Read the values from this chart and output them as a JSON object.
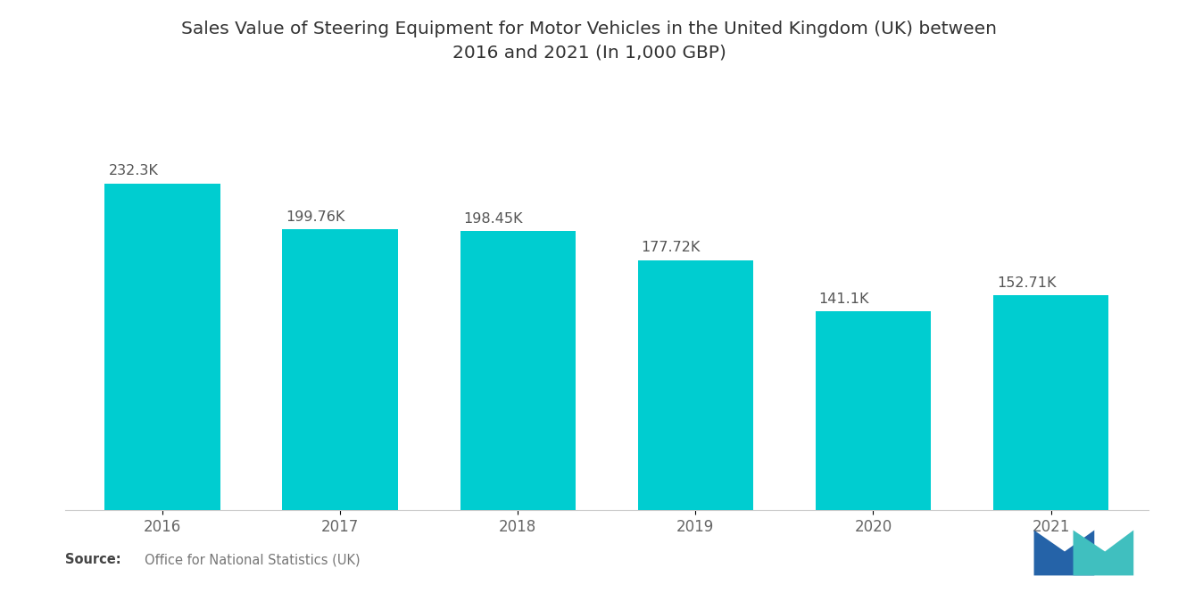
{
  "title_line1": "Sales Value of Steering Equipment for Motor Vehicles in the United Kingdom (UK) between",
  "title_line2": "2016 and 2021 (In 1,000 GBP)",
  "categories": [
    "2016",
    "2017",
    "2018",
    "2019",
    "2020",
    "2021"
  ],
  "values": [
    232300,
    199760,
    198450,
    177720,
    141100,
    152710
  ],
  "labels": [
    "232.3K",
    "199.76K",
    "198.45K",
    "177.72K",
    "141.1K",
    "152.71K"
  ],
  "bar_color": "#00CDD0",
  "background_color": "#ffffff",
  "title_fontsize": 14.5,
  "label_fontsize": 11.5,
  "tick_fontsize": 12,
  "source_text": "Office for National Statistics (UK)",
  "source_label": "Source:",
  "ylim": [
    0,
    270000
  ],
  "logo_left_color": "#2563a8",
  "logo_right_color": "#40bfbf"
}
